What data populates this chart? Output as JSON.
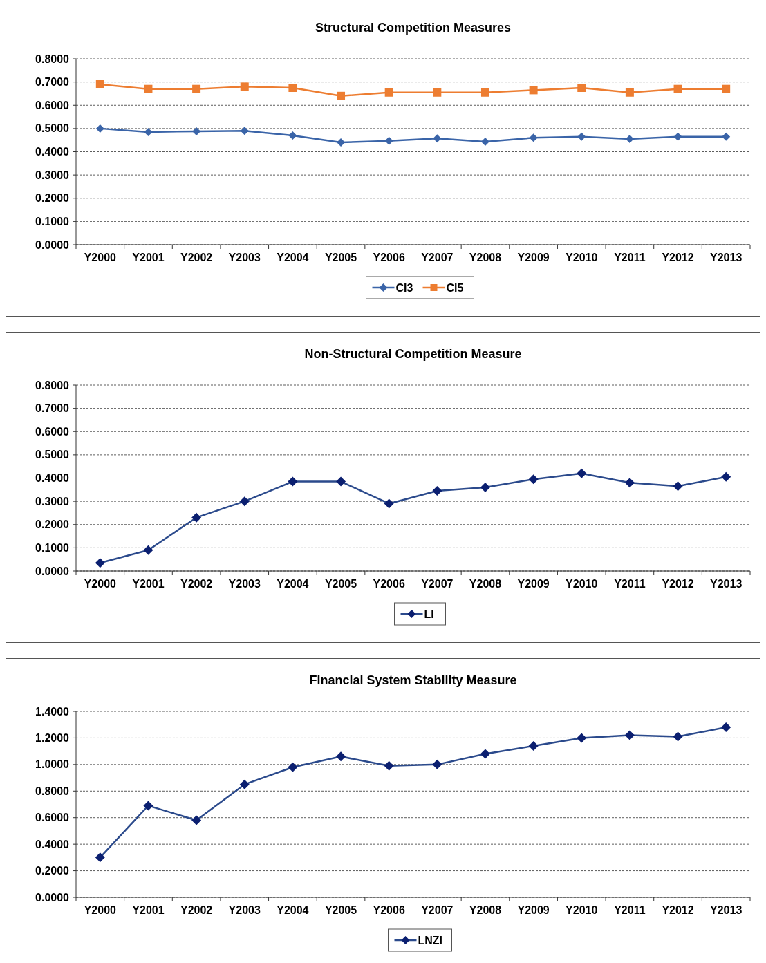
{
  "chart_data": [
    {
      "type": "line",
      "title": "Structural Competition Measures",
      "categories": [
        "Y2000",
        "Y2001",
        "Y2002",
        "Y2003",
        "Y2004",
        "Y2005",
        "Y2006",
        "Y2007",
        "Y2008",
        "Y2009",
        "Y2010",
        "Y2011",
        "Y2012",
        "Y2013"
      ],
      "series": [
        {
          "name": "CI3",
          "color": "#3a64a8",
          "marker": "diamond",
          "values": [
            0.5,
            0.485,
            0.488,
            0.49,
            0.47,
            0.44,
            0.447,
            0.457,
            0.443,
            0.46,
            0.465,
            0.455,
            0.465,
            0.465
          ]
        },
        {
          "name": "CI5",
          "color": "#ed7d31",
          "marker": "square",
          "values": [
            0.69,
            0.67,
            0.67,
            0.68,
            0.675,
            0.64,
            0.655,
            0.655,
            0.655,
            0.665,
            0.675,
            0.655,
            0.67,
            0.67
          ]
        }
      ],
      "ylim": [
        0,
        0.8
      ],
      "yticks": [
        {
          "value": 0,
          "label": "0.0000"
        },
        {
          "value": 0.1,
          "label": "0.1000"
        },
        {
          "value": 0.2,
          "label": "0.2000"
        },
        {
          "value": 0.3,
          "label": "0.3000"
        },
        {
          "value": 0.4,
          "label": "0.4000"
        },
        {
          "value": 0.5,
          "label": "0.5000"
        },
        {
          "value": 0.6,
          "label": "0.6000"
        },
        {
          "value": 0.7,
          "label": "0.7000"
        },
        {
          "value": 0.8,
          "label": "0.8000"
        }
      ],
      "grid": "y",
      "legend": "bottom"
    },
    {
      "type": "line",
      "title": "Non-Structural Competition Measure",
      "categories": [
        "Y2000",
        "Y2001",
        "Y2002",
        "Y2003",
        "Y2004",
        "Y2005",
        "Y2006",
        "Y2007",
        "Y2008",
        "Y2009",
        "Y2010",
        "Y2011",
        "Y2012",
        "Y2013"
      ],
      "series": [
        {
          "name": "LI",
          "color": "#2b4a8c",
          "marker": "diamond",
          "values": [
            0.035,
            0.09,
            0.23,
            0.3,
            0.385,
            0.385,
            0.29,
            0.345,
            0.36,
            0.395,
            0.42,
            0.38,
            0.365,
            0.405
          ]
        }
      ],
      "ylim": [
        0,
        0.8
      ],
      "yticks": [
        {
          "value": 0,
          "label": "0.0000"
        },
        {
          "value": 0.1,
          "label": "0.1000"
        },
        {
          "value": 0.2,
          "label": "0.2000"
        },
        {
          "value": 0.3,
          "label": "0.3000"
        },
        {
          "value": 0.4,
          "label": "0.4000"
        },
        {
          "value": 0.5,
          "label": "0.5000"
        },
        {
          "value": 0.6,
          "label": "0.6000"
        },
        {
          "value": 0.7,
          "label": "0.7000"
        },
        {
          "value": 0.8,
          "label": "0.8000"
        }
      ],
      "grid": "y",
      "legend": "bottom"
    },
    {
      "type": "line",
      "title": "Financial System Stability Measure",
      "categories": [
        "Y2000",
        "Y2001",
        "Y2002",
        "Y2003",
        "Y2004",
        "Y2005",
        "Y2006",
        "Y2007",
        "Y2008",
        "Y2009",
        "Y2010",
        "Y2011",
        "Y2012",
        "Y2013"
      ],
      "series": [
        {
          "name": "LNZI",
          "color": "#2b4a8c",
          "marker": "diamond",
          "values": [
            0.3,
            0.69,
            0.58,
            0.85,
            0.98,
            1.06,
            0.99,
            1.0,
            1.08,
            1.14,
            1.2,
            1.22,
            1.21,
            1.28
          ]
        }
      ],
      "ylim": [
        0,
        1.4
      ],
      "yticks": [
        {
          "value": 0,
          "label": "0.0000"
        },
        {
          "value": 0.2,
          "label": "0.2000"
        },
        {
          "value": 0.4,
          "label": "0.4000"
        },
        {
          "value": 0.6,
          "label": "0.6000"
        },
        {
          "value": 0.8,
          "label": "0.8000"
        },
        {
          "value": 1.0,
          "label": "1.0000"
        },
        {
          "value": 1.2,
          "label": "1.2000"
        },
        {
          "value": 1.4,
          "label": "1.4000"
        }
      ],
      "grid": "y",
      "legend": "bottom"
    }
  ]
}
